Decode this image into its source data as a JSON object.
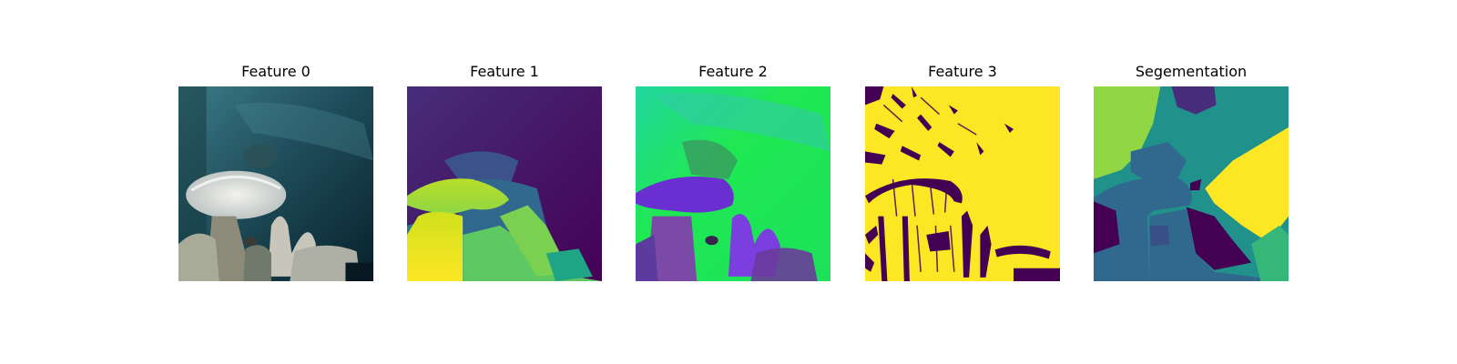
{
  "figure": {
    "panels": [
      {
        "title": "Feature 0"
      },
      {
        "title": "Feature 1"
      },
      {
        "title": "Feature 2"
      },
      {
        "title": "Feature 3"
      },
      {
        "title": "Segementation"
      }
    ]
  },
  "palette": {
    "viridis_dark": "#440154",
    "viridis_indigo": "#472d7b",
    "viridis_blue": "#31688e",
    "viridis_teal": "#21918c",
    "viridis_green": "#35b779",
    "viridis_lime": "#90d743",
    "viridis_yellow": "#fde725",
    "ocean_dark": "#0d2a33",
    "ocean_mid": "#2a5f6d",
    "coral_white": "#e4e6e1",
    "neon_green": "#1fe853",
    "neon_purple": "#6a2fd0"
  }
}
